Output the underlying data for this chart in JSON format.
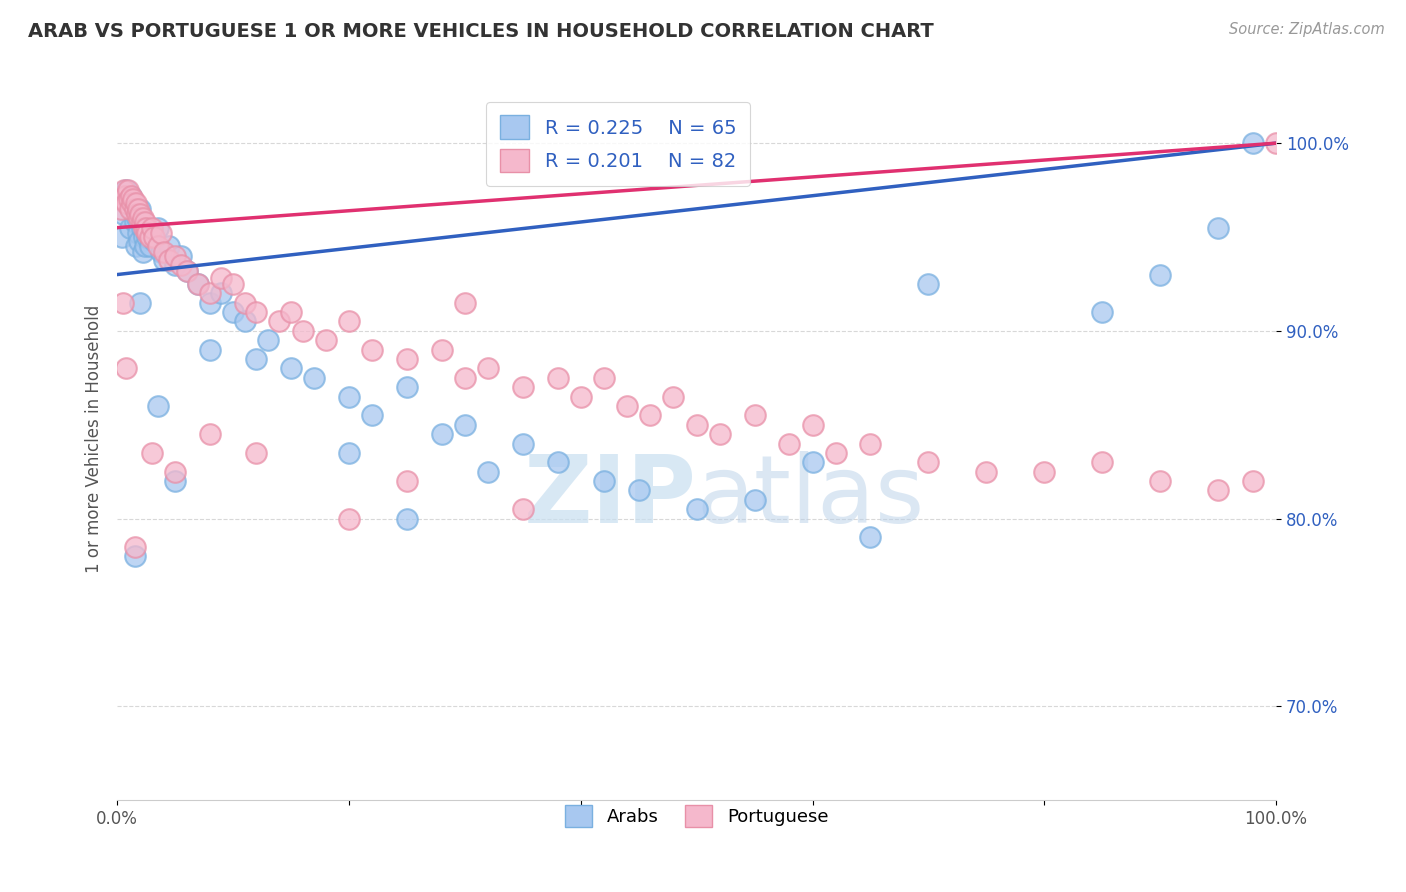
{
  "title": "ARAB VS PORTUGUESE 1 OR MORE VEHICLES IN HOUSEHOLD CORRELATION CHART",
  "source": "Source: ZipAtlas.com",
  "ylabel": "1 or more Vehicles in Household",
  "xlim": [
    0.0,
    100.0
  ],
  "ylim": [
    65.0,
    103.5
  ],
  "yticks": [
    70.0,
    80.0,
    90.0,
    100.0
  ],
  "ytick_labels": [
    "70.0%",
    "80.0%",
    "90.0%",
    "100.0%"
  ],
  "legend_arab_R": "R = 0.225",
  "legend_arab_N": "N = 65",
  "legend_port_R": "R = 0.201",
  "legend_port_N": "N = 82",
  "legend_arab_label": "Arabs",
  "legend_port_label": "Portuguese",
  "arab_color": "#a8c8f0",
  "arab_edge_color": "#7ab0e0",
  "port_color": "#f5b8cc",
  "port_edge_color": "#e890a8",
  "arab_line_color": "#3060c0",
  "port_line_color": "#e03070",
  "r_n_color": "#3060c0",
  "background_color": "#ffffff",
  "watermark_color": "#c8dff0",
  "grid_color": "#d8d8d8",
  "title_color": "#333333",
  "source_color": "#999999",
  "ylabel_color": "#555555",
  "tick_color": "#555555",
  "ytick_color": "#3060c0",
  "arab_x": [
    0.4,
    0.5,
    0.7,
    0.8,
    1.0,
    1.1,
    1.2,
    1.3,
    1.5,
    1.6,
    1.7,
    1.8,
    1.9,
    2.0,
    2.1,
    2.2,
    2.3,
    2.4,
    2.5,
    2.6,
    2.8,
    3.0,
    3.2,
    3.5,
    3.8,
    4.0,
    4.5,
    5.0,
    5.5,
    6.0,
    7.0,
    8.0,
    9.0,
    10.0,
    11.0,
    13.0,
    15.0,
    17.0,
    20.0,
    22.0,
    25.0,
    28.0,
    30.0,
    32.0,
    35.0,
    38.0,
    42.0,
    45.0,
    50.0,
    55.0,
    20.0,
    25.0,
    12.0,
    8.0,
    5.0,
    3.5,
    2.0,
    1.5,
    60.0,
    65.0,
    70.0,
    85.0,
    90.0,
    95.0,
    98.0
  ],
  "arab_y": [
    95.0,
    96.2,
    97.0,
    97.5,
    96.8,
    95.5,
    97.2,
    96.5,
    95.8,
    94.5,
    96.0,
    95.2,
    94.8,
    96.5,
    95.5,
    94.2,
    95.0,
    94.5,
    95.5,
    95.0,
    94.5,
    95.2,
    94.8,
    95.5,
    94.2,
    93.8,
    94.5,
    93.5,
    94.0,
    93.2,
    92.5,
    91.5,
    92.0,
    91.0,
    90.5,
    89.5,
    88.0,
    87.5,
    86.5,
    85.5,
    87.0,
    84.5,
    85.0,
    82.5,
    84.0,
    83.0,
    82.0,
    81.5,
    80.5,
    81.0,
    83.5,
    80.0,
    88.5,
    89.0,
    82.0,
    86.0,
    91.5,
    78.0,
    83.0,
    79.0,
    92.5,
    91.0,
    93.0,
    95.5,
    100.0
  ],
  "port_x": [
    0.3,
    0.5,
    0.6,
    0.7,
    0.8,
    0.9,
    1.0,
    1.1,
    1.2,
    1.3,
    1.4,
    1.5,
    1.6,
    1.7,
    1.8,
    1.9,
    2.0,
    2.1,
    2.2,
    2.3,
    2.4,
    2.5,
    2.6,
    2.8,
    3.0,
    3.2,
    3.5,
    3.8,
    4.0,
    4.5,
    5.0,
    5.5,
    6.0,
    7.0,
    8.0,
    9.0,
    10.0,
    11.0,
    12.0,
    14.0,
    16.0,
    18.0,
    20.0,
    22.0,
    25.0,
    28.0,
    30.0,
    32.0,
    35.0,
    38.0,
    40.0,
    42.0,
    44.0,
    46.0,
    48.0,
    50.0,
    52.0,
    55.0,
    58.0,
    60.0,
    62.0,
    65.0,
    70.0,
    75.0,
    80.0,
    85.0,
    90.0,
    95.0,
    98.0,
    100.0,
    15.0,
    20.0,
    25.0,
    30.0,
    35.0,
    12.0,
    8.0,
    5.0,
    3.0,
    1.5,
    0.8,
    0.5
  ],
  "port_y": [
    96.5,
    97.0,
    97.5,
    97.2,
    96.8,
    97.5,
    97.0,
    96.5,
    97.2,
    96.8,
    97.0,
    96.5,
    96.8,
    96.2,
    96.5,
    96.0,
    96.2,
    95.8,
    96.0,
    95.5,
    95.8,
    95.5,
    95.2,
    95.0,
    95.5,
    95.0,
    94.5,
    95.2,
    94.2,
    93.8,
    94.0,
    93.5,
    93.2,
    92.5,
    92.0,
    92.8,
    92.5,
    91.5,
    91.0,
    90.5,
    90.0,
    89.5,
    90.5,
    89.0,
    88.5,
    89.0,
    87.5,
    88.0,
    87.0,
    87.5,
    86.5,
    87.5,
    86.0,
    85.5,
    86.5,
    85.0,
    84.5,
    85.5,
    84.0,
    85.0,
    83.5,
    84.0,
    83.0,
    82.5,
    82.5,
    83.0,
    82.0,
    81.5,
    82.0,
    100.0,
    91.0,
    80.0,
    82.0,
    91.5,
    80.5,
    83.5,
    84.5,
    82.5,
    83.5,
    78.5,
    88.0,
    91.5
  ],
  "arab_line_x0": 0.0,
  "arab_line_x1": 100.0,
  "arab_line_y0": 93.0,
  "arab_line_y1": 100.0,
  "port_line_x0": 0.0,
  "port_line_x1": 100.0,
  "port_line_y0": 95.5,
  "port_line_y1": 100.0
}
